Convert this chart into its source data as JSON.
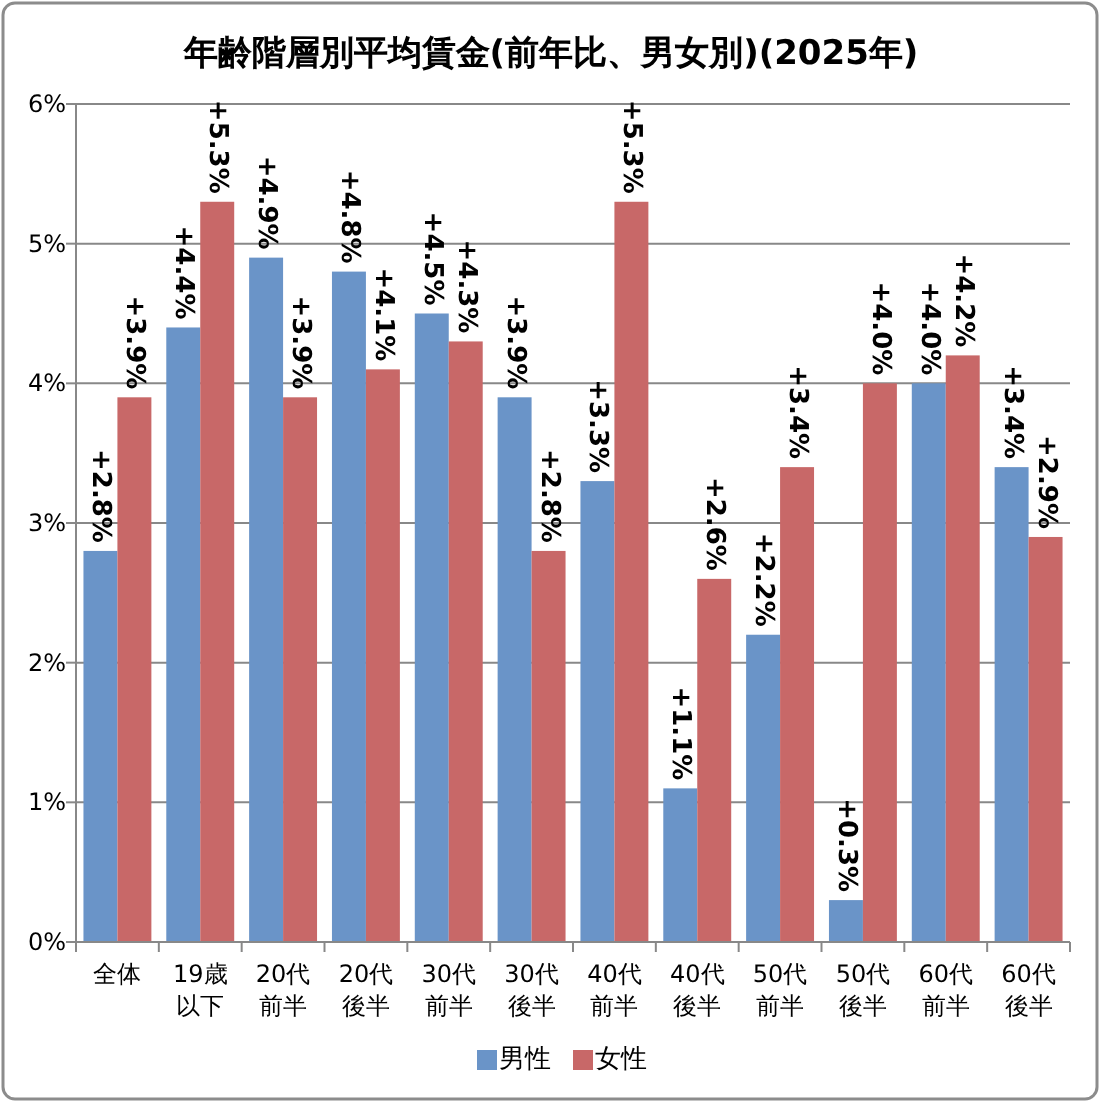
{
  "chart_data": {
    "type": "bar",
    "title": "年齢階層別平均賃金(前年比、男女別)(2025年)",
    "categories": [
      "全体",
      "19歳以下",
      "20代前半",
      "20代後半",
      "30代前半",
      "30代後半",
      "40代前半",
      "40代後半",
      "50代前半",
      "50代後半",
      "60代前半",
      "60代後半"
    ],
    "series": [
      {
        "name": "男性",
        "color": "#6a94c8",
        "values": [
          2.8,
          4.4,
          4.9,
          4.8,
          4.5,
          3.9,
          3.3,
          1.1,
          2.2,
          0.3,
          4.0,
          3.4
        ],
        "value_labels": [
          "+2.8%",
          "+4.4%",
          "+4.9%",
          "+4.8%",
          "+4.5%",
          "+3.9%",
          "+3.3%",
          "+1.1%",
          "+2.2%",
          "+0.3%",
          "+4.0%",
          "+3.4%"
        ]
      },
      {
        "name": "女性",
        "color": "#c86868",
        "values": [
          3.9,
          5.3,
          3.9,
          4.1,
          4.3,
          2.8,
          5.3,
          2.6,
          3.4,
          4.0,
          4.2,
          2.9
        ],
        "value_labels": [
          "+3.9%",
          "+5.3%",
          "+3.9%",
          "+4.1%",
          "+4.3%",
          "+2.8%",
          "+5.3%",
          "+2.6%",
          "+3.4%",
          "+4.0%",
          "+4.2%",
          "+2.9%"
        ]
      }
    ],
    "ylim": [
      0,
      6
    ],
    "yticks": [
      {
        "value": 0,
        "label": "0%"
      },
      {
        "value": 1,
        "label": "1%"
      },
      {
        "value": 2,
        "label": "2%"
      },
      {
        "value": 3,
        "label": "3%"
      },
      {
        "value": 4,
        "label": "4%"
      },
      {
        "value": 5,
        "label": "5%"
      },
      {
        "value": 6,
        "label": "6%"
      }
    ],
    "grid": "y",
    "legend": "bottom"
  }
}
